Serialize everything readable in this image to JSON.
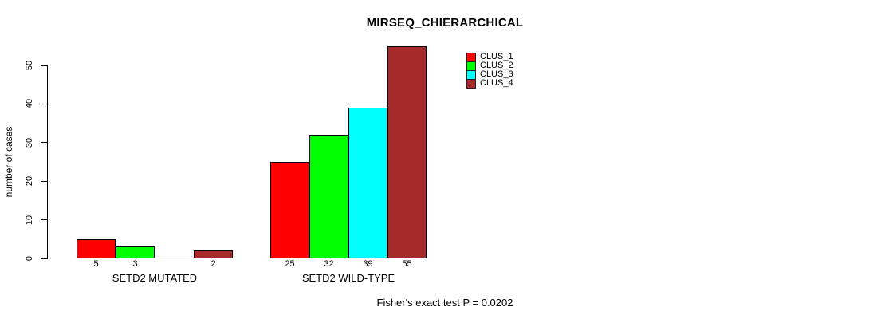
{
  "chart_data": {
    "type": "bar",
    "title": "MIRSEQ_CHIERARCHICAL",
    "ylabel": "number of cases",
    "xlabel": "",
    "categories": [
      "SETD2 MUTATED",
      "SETD2 WILD-TYPE"
    ],
    "series": [
      {
        "name": "CLUS_1",
        "color": "#ff0000",
        "values": [
          5,
          25
        ]
      },
      {
        "name": "CLUS_2",
        "color": "#00ff00",
        "values": [
          3,
          32
        ]
      },
      {
        "name": "CLUS_3",
        "color": "#00ffff",
        "values": [
          0,
          39
        ]
      },
      {
        "name": "CLUS_4",
        "color": "#a52a2a",
        "values": [
          2,
          55
        ]
      }
    ],
    "bar_labels": [
      [
        "5",
        "3",
        "",
        "2"
      ],
      [
        "25",
        "32",
        "39",
        "55"
      ]
    ],
    "yticks": [
      0,
      10,
      20,
      30,
      40,
      50
    ],
    "ylim": [
      0,
      50
    ],
    "grid": false,
    "legend_position": "top-right",
    "annotation": "Fisher's exact test P = 0.0202"
  }
}
